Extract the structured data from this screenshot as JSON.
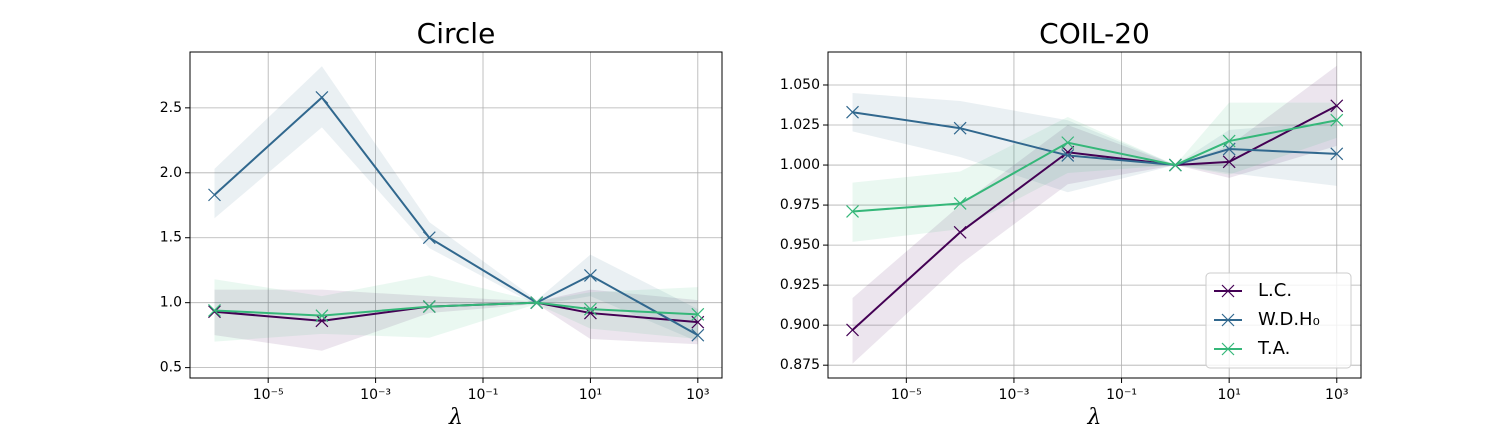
{
  "chart_data": [
    {
      "type": "line",
      "title": "Circle",
      "x_label": "λ",
      "xscale": "log",
      "grid": true,
      "x": [
        1e-06,
        0.0001,
        0.01,
        1,
        10,
        1000
      ],
      "xlim": [
        3.5e-07,
        2820
      ],
      "xticks": [
        {
          "value": 1e-05,
          "label": "10⁻⁵"
        },
        {
          "value": 0.001,
          "label": "10⁻³"
        },
        {
          "value": 0.1,
          "label": "10⁻¹"
        },
        {
          "value": 10,
          "label": "10¹"
        },
        {
          "value": 1000,
          "label": "10³"
        }
      ],
      "ylim": [
        0.42,
        2.93
      ],
      "yticks": [
        0.5,
        {
          "value": 1.0,
          "label": "1.0"
        },
        1.5,
        {
          "value": 2.0,
          "label": "2.0"
        },
        2.5
      ],
      "series": [
        {
          "color": "#440154",
          "values": [
            0.93,
            0.86,
            0.97,
            1.0,
            0.92,
            0.85
          ],
          "lower": [
            0.75,
            0.63,
            0.92,
            0.99,
            0.72,
            0.68
          ],
          "upper": [
            1.1,
            1.1,
            1.05,
            1.01,
            1.1,
            1.02
          ]
        },
        {
          "color": "#31688e",
          "values": [
            1.83,
            2.58,
            1.5,
            1.0,
            1.21,
            0.75
          ],
          "lower": [
            1.65,
            2.35,
            1.42,
            0.98,
            1.05,
            0.7
          ],
          "upper": [
            2.03,
            2.82,
            1.62,
            1.02,
            1.37,
            0.95
          ]
        },
        {
          "color": "#35b779",
          "values": [
            0.94,
            0.9,
            0.97,
            1.0,
            0.95,
            0.91
          ],
          "lower": [
            0.7,
            0.76,
            0.73,
            0.99,
            0.8,
            0.72
          ],
          "upper": [
            1.18,
            1.05,
            1.21,
            1.01,
            1.08,
            1.12
          ]
        }
      ]
    },
    {
      "type": "line",
      "title": "COIL-20",
      "x_label": "λ",
      "xscale": "log",
      "grid": true,
      "legend": "lower right",
      "x": [
        1e-06,
        0.0001,
        0.01,
        1,
        10,
        1000
      ],
      "xlim": [
        3.5e-07,
        2820
      ],
      "xticks": [
        {
          "value": 1e-05,
          "label": "10⁻⁵"
        },
        {
          "value": 0.001,
          "label": "10⁻³"
        },
        {
          "value": 0.1,
          "label": "10⁻¹"
        },
        {
          "value": 10,
          "label": "10¹"
        },
        {
          "value": 1000,
          "label": "10³"
        }
      ],
      "ylim": [
        0.867,
        1.0706
      ],
      "yticks": [
        0.875,
        {
          "value": 0.9,
          "label": "0.900"
        },
        0.925,
        {
          "value": 0.95,
          "label": "0.950"
        },
        0.975,
        {
          "value": 1.0,
          "label": "1.000"
        },
        1.025,
        {
          "value": 1.05,
          "label": "1.050"
        }
      ],
      "series": [
        {
          "name": "L.C.",
          "color": "#440154",
          "values": [
            0.897,
            0.958,
            1.008,
            1.0,
            1.002,
            1.037
          ],
          "lower": [
            0.876,
            0.938,
            0.988,
            1.0,
            0.992,
            1.012
          ],
          "upper": [
            0.917,
            0.975,
            1.025,
            1.0,
            1.012,
            1.062
          ]
        },
        {
          "name": "W.D.H₀",
          "color": "#31688e",
          "values": [
            1.033,
            1.023,
            1.006,
            1.0,
            1.01,
            1.007
          ],
          "lower": [
            1.021,
            1.005,
            0.983,
            1.0,
            0.995,
            0.987
          ],
          "upper": [
            1.045,
            1.04,
            1.028,
            1.0,
            1.022,
            1.027
          ]
        },
        {
          "name": "T.A.",
          "color": "#35b779",
          "values": [
            0.971,
            0.976,
            1.014,
            1.0,
            1.015,
            1.028
          ],
          "lower": [
            0.952,
            0.96,
            0.995,
            1.0,
            0.994,
            1.017
          ],
          "upper": [
            0.989,
            0.996,
            1.03,
            1.0,
            1.039,
            1.039
          ]
        }
      ]
    }
  ]
}
